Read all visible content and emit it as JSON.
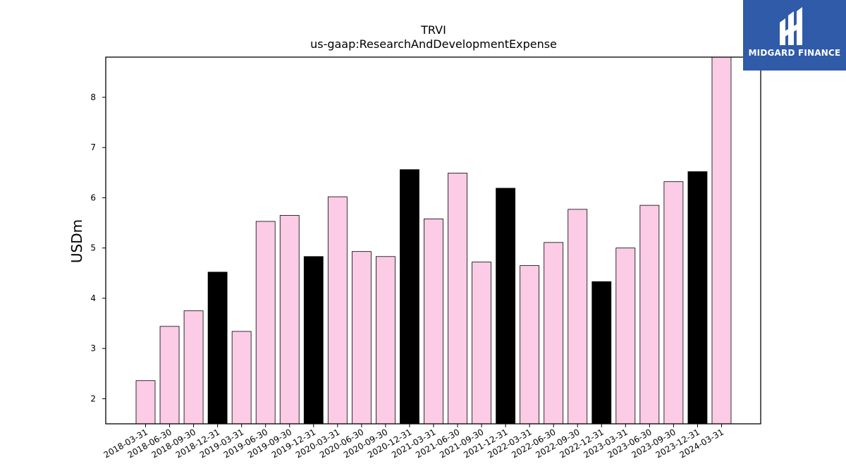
{
  "chart_data": {
    "type": "bar",
    "title": "TRVI",
    "subtitle": "us-gaap:ResearchAndDevelopmentExpense",
    "xlabel": "",
    "ylabel": "USDm",
    "ylim": [
      1.5,
      8.8
    ],
    "yticks": [
      2,
      3,
      4,
      5,
      6,
      7,
      8
    ],
    "grid": false,
    "legend": "none",
    "categories": [
      "2018-03-31",
      "2018-06-30",
      "2018-09-30",
      "2018-12-31",
      "2019-03-31",
      "2019-06-30",
      "2019-09-30",
      "2019-12-31",
      "2020-03-31",
      "2020-06-30",
      "2020-09-30",
      "2020-12-31",
      "2021-03-31",
      "2021-06-30",
      "2021-09-30",
      "2021-12-31",
      "2022-03-31",
      "2022-06-30",
      "2022-09-30",
      "2022-12-31",
      "2023-03-31",
      "2023-06-30",
      "2023-09-30",
      "2023-12-31",
      "2024-03-31"
    ],
    "values": [
      2.36,
      3.44,
      3.75,
      4.52,
      3.34,
      5.53,
      5.65,
      4.83,
      6.02,
      4.93,
      4.83,
      6.56,
      5.58,
      6.49,
      4.72,
      6.19,
      4.65,
      5.11,
      5.77,
      4.33,
      5.0,
      5.85,
      6.32,
      6.52,
      8.8
    ],
    "colors": {
      "quarter": "#fccbe5",
      "year_end": "#000000",
      "edge": "#000000"
    },
    "year_end_dates": [
      "2018-12-31",
      "2019-12-31",
      "2020-12-31",
      "2021-12-31",
      "2022-12-31",
      "2023-12-31"
    ]
  },
  "logo": {
    "text": "MIDGARD FINANCE",
    "background": "#2f5ba8"
  }
}
